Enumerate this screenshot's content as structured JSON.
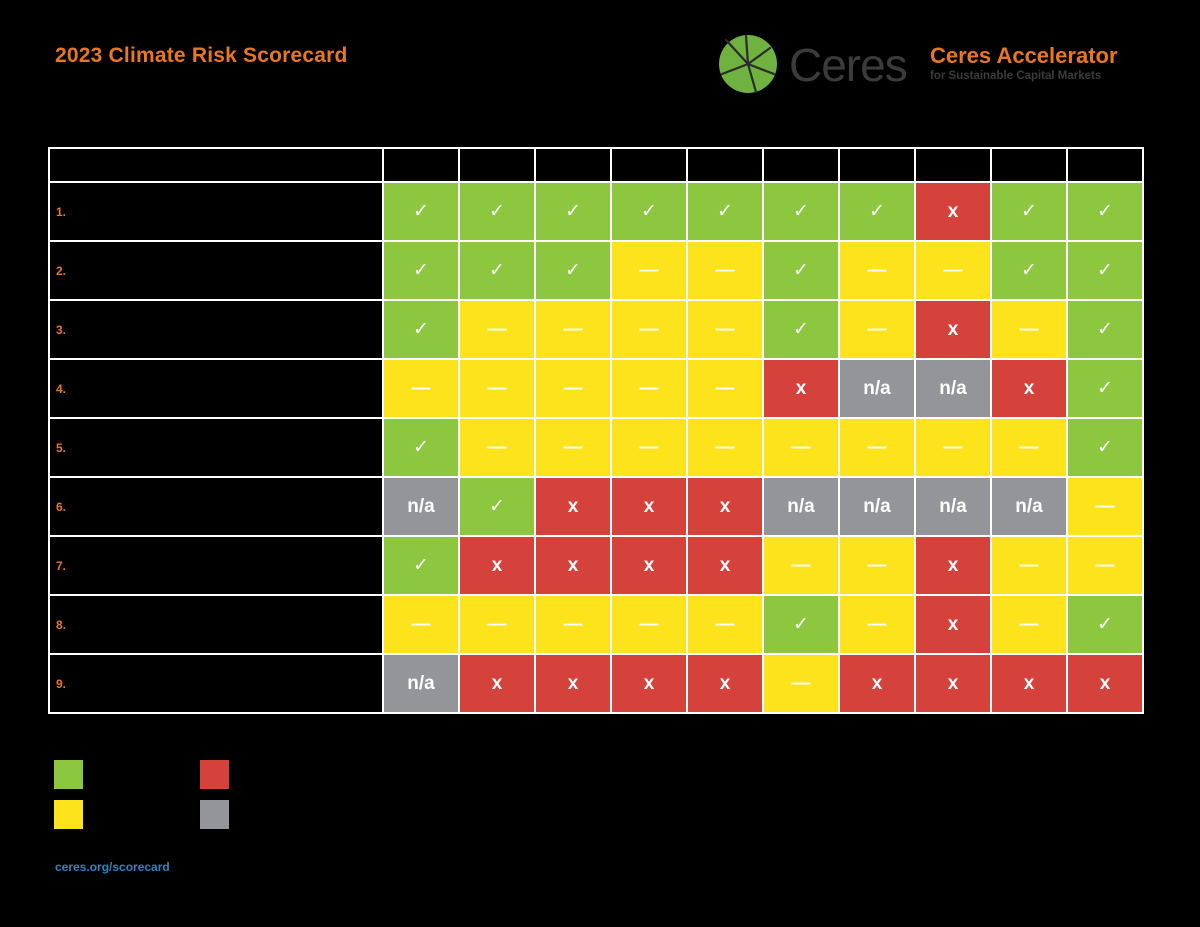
{
  "header": {
    "title": "2023 Climate Risk Scorecard",
    "brand_name": "Ceres",
    "brand_colors": {
      "leaf_green": "#6FB23F",
      "dark": "#3b3b3b"
    },
    "accelerator_title": "Ceres Accelerator",
    "accelerator_subtitle": "for Sustainable Capital Markets"
  },
  "colors": {
    "accent_orange": "#E87722",
    "yes": "#8DC63F",
    "partial": "#FDE31B",
    "no": "#D5413B",
    "na": "#939598",
    "link": "#2E86C1"
  },
  "symbols": {
    "yes": "✓",
    "partial": "—",
    "no": "x",
    "na": "n/a"
  },
  "chart_data": {
    "type": "table",
    "row_labels": [
      "1.",
      "2.",
      "3.",
      "4.",
      "5.",
      "6.",
      "7.",
      "8.",
      "9."
    ],
    "column_count": 10,
    "rows": [
      [
        "yes",
        "yes",
        "yes",
        "yes",
        "yes",
        "yes",
        "yes",
        "no",
        "yes",
        "yes"
      ],
      [
        "yes",
        "yes",
        "yes",
        "partial",
        "partial",
        "yes",
        "partial",
        "partial",
        "yes",
        "yes"
      ],
      [
        "yes",
        "partial",
        "partial",
        "partial",
        "partial",
        "yes",
        "partial",
        "no",
        "partial",
        "yes"
      ],
      [
        "partial",
        "partial",
        "partial",
        "partial",
        "partial",
        "no",
        "na",
        "na",
        "no",
        "yes"
      ],
      [
        "yes",
        "partial",
        "partial",
        "partial",
        "partial",
        "partial",
        "partial",
        "partial",
        "partial",
        "yes"
      ],
      [
        "na",
        "yes",
        "no",
        "no",
        "no",
        "na",
        "na",
        "na",
        "na",
        "partial"
      ],
      [
        "yes",
        "no",
        "no",
        "no",
        "no",
        "partial",
        "partial",
        "no",
        "partial",
        "partial"
      ],
      [
        "partial",
        "partial",
        "partial",
        "partial",
        "partial",
        "yes",
        "partial",
        "no",
        "partial",
        "yes"
      ],
      [
        "na",
        "no",
        "no",
        "no",
        "no",
        "partial",
        "no",
        "no",
        "no",
        "no"
      ]
    ]
  },
  "legend": [
    {
      "status": "yes",
      "color": "#8DC63F"
    },
    {
      "status": "no",
      "color": "#D5413B"
    },
    {
      "status": "partial",
      "color": "#FDE31B"
    },
    {
      "status": "na",
      "color": "#939598"
    }
  ],
  "footer": {
    "link": "ceres.org/scorecard"
  }
}
